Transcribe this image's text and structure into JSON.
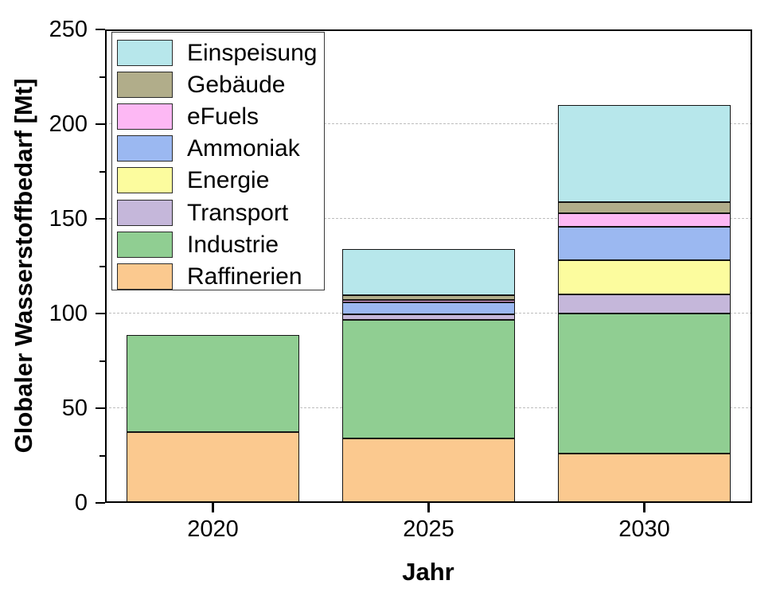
{
  "chart_data": {
    "type": "bar",
    "stacked": true,
    "title": "",
    "xlabel": "Jahr",
    "ylabel": "Globaler Wasserstoffbedarf [Mt]",
    "categories": [
      "2020",
      "2025",
      "2030"
    ],
    "series": [
      {
        "name": "Raffinerien",
        "color": "#FBC98F",
        "values": [
          37.5,
          34,
          26
        ]
      },
      {
        "name": "Industrie",
        "color": "#90CE92",
        "values": [
          51,
          62.5,
          74
        ]
      },
      {
        "name": "Transport",
        "color": "#C5B7DA",
        "values": [
          0,
          3,
          10
        ]
      },
      {
        "name": "Energie",
        "color": "#FCFC9E",
        "values": [
          0,
          0,
          18
        ]
      },
      {
        "name": "Ammoniak",
        "color": "#9BB8F1",
        "values": [
          0,
          6.5,
          18
        ]
      },
      {
        "name": "eFuels",
        "color": "#FDB8F4",
        "values": [
          0,
          1,
          7
        ]
      },
      {
        "name": "Gebäude",
        "color": "#B1AD8A",
        "values": [
          0,
          2.5,
          6
        ]
      },
      {
        "name": "Einspeisung",
        "color": "#B7E7EB",
        "values": [
          0,
          24.5,
          51
        ]
      }
    ],
    "totals": [
      88.5,
      134,
      210
    ],
    "ylim": [
      0,
      250
    ],
    "yticks_major": [
      0,
      50,
      100,
      150,
      200,
      250
    ],
    "yticks_minor": [
      25,
      75,
      125,
      175,
      225
    ],
    "grid": "horizontal dashed at major ticks",
    "legend_position": "upper-left inside plot",
    "legend_order_top_to_bottom": [
      "Einspeisung",
      "Gebäude",
      "eFuels",
      "Ammoniak",
      "Energie",
      "Transport",
      "Industrie",
      "Raffinerien"
    ],
    "axis_color": "#000000",
    "gridline_color": "#bdbdbd",
    "background_color": "#ffffff"
  }
}
